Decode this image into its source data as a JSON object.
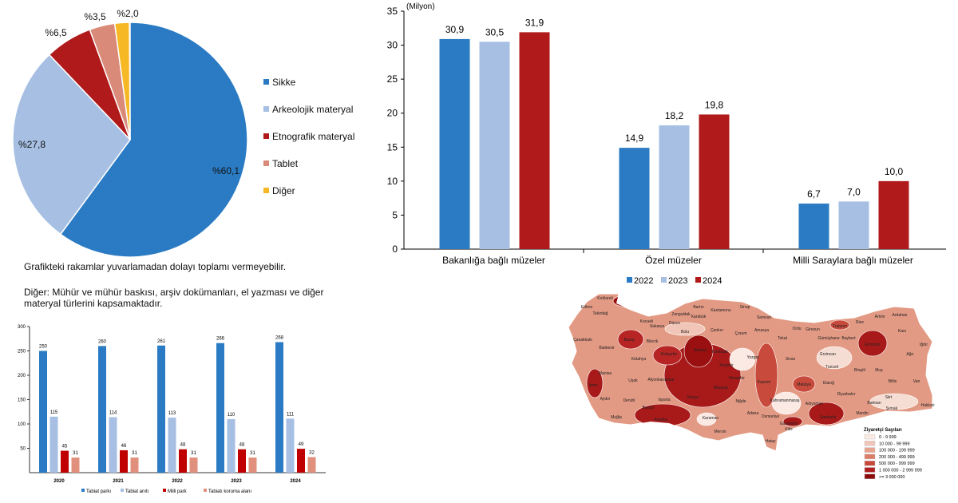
{
  "colors": {
    "blue": "#2a7bc3",
    "lightblue": "#a6bfe3",
    "red": "#b01a1a",
    "salmon": "#d98a78",
    "yellow": "#f6b825"
  },
  "chart_data": [
    {
      "type": "pie",
      "slices": [
        {
          "name": "Sikke",
          "value": 60.1,
          "label": "%60,1",
          "color": "#2a7bc3"
        },
        {
          "name": "Arkeolojik materyal",
          "value": 27.8,
          "label": "%27,8",
          "color": "#a6bfe3"
        },
        {
          "name": "Etnografik materyal",
          "value": 6.5,
          "label": "%6,5",
          "color": "#b01a1a"
        },
        {
          "name": "Tablet",
          "value": 3.5,
          "label": "%3,5",
          "color": "#d98a78"
        },
        {
          "name": "Diğer",
          "value": 2.0,
          "label": "%2,0",
          "color": "#f6b825"
        }
      ],
      "legend": "right"
    },
    {
      "type": "bar",
      "ylabel": "(Milyon)",
      "ylim": [
        0,
        35
      ],
      "yticks": [
        "0",
        "5",
        "10",
        "15",
        "20",
        "25",
        "30",
        "35"
      ],
      "categories": [
        "Bakanlığa bağlı müzeler",
        "Özel müzeler",
        "Milli Saraylara bağlı müzeler"
      ],
      "series": [
        {
          "name": "2022",
          "values": [
            30.9,
            14.9,
            6.7
          ],
          "labels": [
            "30,9",
            "14,9",
            "6,7"
          ],
          "color": "#2a7bc3"
        },
        {
          "name": "2023",
          "values": [
            30.5,
            18.2,
            7.0
          ],
          "labels": [
            "30,5",
            "18,2",
            "7,0"
          ],
          "color": "#a6bfe3"
        },
        {
          "name": "2024",
          "values": [
            31.9,
            19.8,
            10.0
          ],
          "labels": [
            "31,9",
            "19,8",
            "10,0"
          ],
          "color": "#b01a1a"
        }
      ],
      "legend": "bottom"
    },
    {
      "type": "bar",
      "ylim": [
        0,
        300
      ],
      "yticks": [
        "50",
        "100",
        "150",
        "200",
        "250",
        "300"
      ],
      "categories": [
        "2020",
        "2021",
        "2022",
        "2023",
        "2024"
      ],
      "series": [
        {
          "name": "Tabiat parkı",
          "values": [
            250,
            260,
            261,
            266,
            268
          ],
          "color": "#2a7bc3"
        },
        {
          "name": "Tabiat anıtı",
          "values": [
            115,
            114,
            113,
            110,
            111
          ],
          "color": "#a6bfe3"
        },
        {
          "name": "Milli park",
          "values": [
            45,
            46,
            48,
            48,
            49
          ],
          "color": "#c00000"
        },
        {
          "name": "Tabiatı koruma alanı",
          "values": [
            31,
            31,
            31,
            31,
            32
          ],
          "color": "#e0907c"
        }
      ],
      "legend": "bottom"
    }
  ],
  "notes": {
    "rounding": "Grafikteki rakamlar yuvarlamadan dolayı toplamı vermeyebilir.",
    "other": "Diğer: Mühür ve mühür baskısı, arşiv dokümanları, el yazması ve diğer materyal türlerini kapsamaktadır."
  },
  "map": {
    "legend_title": "Ziyaretçi Sayıları",
    "legend": [
      {
        "label": "0 - 9 999",
        "color": "#fbe9e3"
      },
      {
        "label": "10 000 - 99 999",
        "color": "#f1c6b8"
      },
      {
        "label": "100 000 - 199 999",
        "color": "#e8a38e"
      },
      {
        "label": "200 000 - 499 999",
        "color": "#db7d66"
      },
      {
        "label": "500 000 - 999 999",
        "color": "#c84a3c"
      },
      {
        "label": "1 000 000 - 2 999 999",
        "color": "#b01f1f"
      },
      {
        "label": ">= 3 000 000",
        "color": "#8b0a0a"
      }
    ],
    "provinces": [
      "Kırklareli",
      "Edirne",
      "Tekirdağ",
      "Kocaeli",
      "Zonguldak",
      "Bartın",
      "Kastamonu",
      "Sinop",
      "Sakarya",
      "Düzce",
      "Karabük",
      "Bolu",
      "Çankırı",
      "Çorum",
      "Çanakkale",
      "Bursa",
      "Bilecik",
      "Balıkesir",
      "Eskişehir",
      "Ankara",
      "Kırıkkale",
      "Yozgat",
      "Kütahya",
      "Kırşehir",
      "Manisa",
      "Uşak",
      "Afyonkarahisar",
      "Nevşehir",
      "İzmir",
      "Aksaray",
      "Konya",
      "Aydın",
      "Denizli",
      "Isparta",
      "Niğde",
      "Burdur",
      "Muğla",
      "Antalya",
      "Karaman",
      "Adana",
      "Mersin",
      "Samsun",
      "Amasya",
      "Tokat",
      "Ordu",
      "Giresun",
      "Trabzon",
      "Rize",
      "Artvin",
      "Ardahan",
      "Gümüşhane",
      "Bayburt",
      "Erzurum",
      "Kars",
      "Iğdır",
      "Sivas",
      "Erzincan",
      "Ağrı",
      "Tunceli",
      "Bingöl",
      "Muş",
      "Kayseri",
      "Malatya",
      "Elazığ",
      "Bitlis",
      "Van",
      "Diyarbakır",
      "Kahramanmaraş",
      "Adıyaman",
      "Siirt",
      "Batman",
      "Hakkari",
      "Şırnak",
      "Mardin",
      "Osmaniye",
      "Gaziantep",
      "Şanlıurfa",
      "Kilis",
      "Hatay"
    ]
  }
}
